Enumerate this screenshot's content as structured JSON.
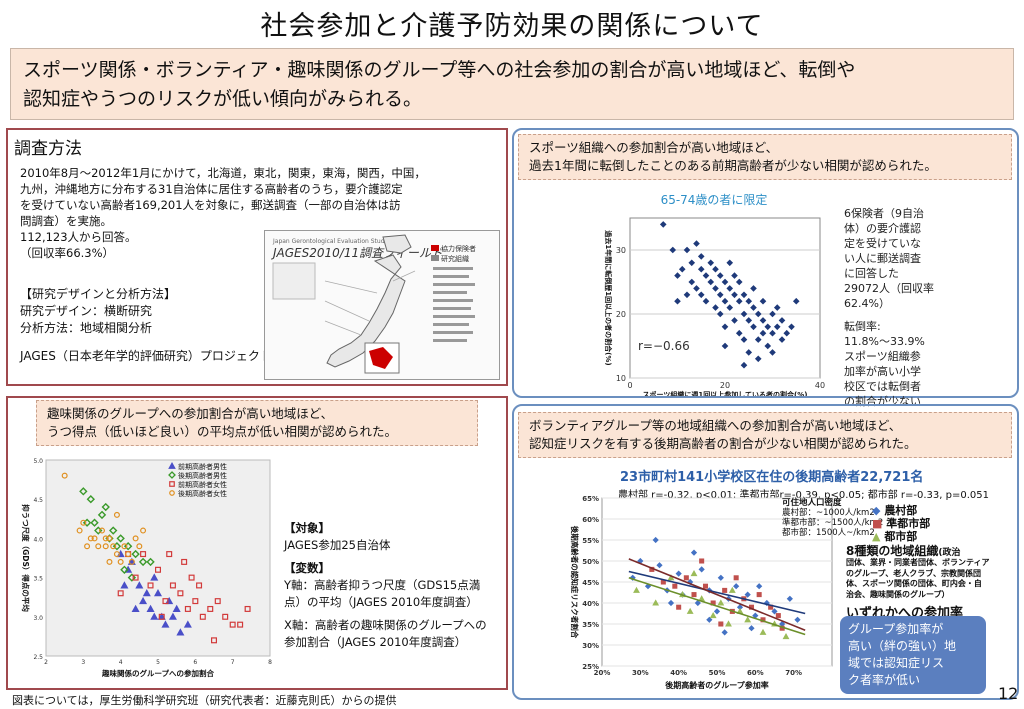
{
  "title": "社会参加と介護予防効果の関係について",
  "summary": [
    "スポーツ関係・ボランティア・趣味関係のグループ等への社会参加の割合が高い地域ほど、転倒や",
    "認知症やうつのリスクが低い傾向がみられる。"
  ],
  "method": {
    "heading": "調査方法",
    "lines": [
      "2010年8月～2012年1月にかけて，北海道，東北，関東，東海，関西，中国，",
      "九州，沖縄地方に分布する31自治体に居住する高齢者のうち，要介護認定",
      "を受けていない高齢者169,201人を対象に，郵送調査（一部の自治体は訪",
      "問調査）を実施。",
      "112,123人から回答。",
      "（回収率66.3%）"
    ],
    "design_lines": [
      "【研究デザインと分析方法】",
      "研究デザイン：横断研究",
      "分析方法：地域相関分析"
    ],
    "jages": "JAGES（日本老年学的評価研究）プロジェクト",
    "map_title": "JAGES2010/11調査フィールド",
    "map_subtitle": "Japan Gerontological Evaluation Study",
    "map_label1": "協力保険者",
    "map_label2": "研究組織"
  },
  "hobby": {
    "callout": [
      "趣味関係のグループへの参加割合が高い地域ほど、",
      "うつ得点（低いほど良い）の平均点が低い相関が認められた。"
    ],
    "legend": [
      "前期高齢者男性",
      "後期高齢者男性",
      "前期高齢者女性",
      "後期高齢者女性"
    ],
    "ylabel": "抑うつ尺度（GDS）得点の平均",
    "xlabel": "趣味関係のグループへの参加割合",
    "target_head": "【対象】",
    "target": "JAGES参加25自治体",
    "var_head": "【変数】",
    "yvar": "Y軸：高齢者抑うつ尺度（GDS15点満点）の平均（JAGES 2010年度調査）",
    "xvar": "X軸：高齢者の趣味関係のグループへの参加割合（JAGES 2010年度調査）"
  },
  "sport": {
    "callout": [
      "スポーツ組織への参加割合が高い地域ほど、",
      "過去1年間に転倒したことのある前期高齢者が少ない相関が認められた。"
    ],
    "chart_title": "65-74歳の者に限定",
    "n_label": "小学校区（n＝65）",
    "r_label": "r=−0.66",
    "ylabel": "過去1年間に転倒歴1回以上の者の割合(%)",
    "xlabel": "スポーツ組織に週1回以上参加している者の割合(%)",
    "side": [
      "6保険者（9自治",
      "体）の要介護認",
      "定を受けていな",
      "い人に郵送調査",
      "に回答した",
      "29072人（回収率",
      "62.4%）",
      "",
      "転倒率:",
      "11.8%～33.9%",
      "スポーツ組織参",
      "加率が高い小学",
      "校区では転倒者",
      "の割合が少ない"
    ]
  },
  "volunteer": {
    "callout": [
      "ボランティアグループ等の地域組織への参加割合が高い地域ほど、",
      "認知症リスクを有する後期高齢者の割合が少ない相関が認められた。"
    ],
    "chart_title": "23市町村141小学校区在住の後期高齢者22,721名",
    "stats": "農村部 r=-0.32, p<0.01; 準都市部r=-0.39, p<0.05; 都市部 r=-0.33, p=0.051",
    "density_head": "可住地人口密度",
    "density": [
      "農村部：~1000人/km2",
      "準都市部：~1500人/km2",
      "都市部：1500人~/km2"
    ],
    "legend": [
      "農村部",
      "準都市部",
      "都市部"
    ],
    "org_head": "8種類の地域組織",
    "org_suffix": "(政治",
    "org_list": [
      "団体、業界・同業者団体、ボランティア",
      "のグループ、老人クラブ、宗教関係団",
      "体、スポーツ関係の団体、町内会・自",
      "治会、趣味関係のグループ）"
    ],
    "org_foot": "いずれかへの参加率",
    "ylabel": "後期高齢者の認知症リスク者割合",
    "xlabel": "後期高齢者のグループ参加率",
    "bluebox": [
      "グループ参加率が",
      "高い（絆の強い）地",
      "域では認知症リス",
      "ク者率が低い"
    ]
  },
  "footer": "図表については，厚生労働科学研究班（研究代表者：近藤克則氏）からの提供",
  "page_number": "12",
  "chart_data": [
    {
      "type": "scatter",
      "title": "65-74歳の者に限定",
      "xlabel": "スポーツ組織に週1回以上参加している者の割合(%)",
      "ylabel": "過去1年間に転倒歴1回以上の者の割合(%)",
      "xlim": [
        0,
        40
      ],
      "ylim": [
        10,
        35
      ],
      "xticks": [
        0,
        20,
        40
      ],
      "yticks": [
        10,
        20,
        30
      ],
      "series": [
        {
          "name": "",
          "points": [
            [
              7,
              34
            ],
            [
              9,
              30
            ],
            [
              10,
              26
            ],
            [
              10,
              22
            ],
            [
              11,
              27
            ],
            [
              12,
              30
            ],
            [
              13,
              28
            ],
            [
              13,
              25
            ],
            [
              14,
              31
            ],
            [
              14,
              24
            ],
            [
              15,
              27
            ],
            [
              15,
              29
            ],
            [
              16,
              26
            ],
            [
              16,
              22
            ],
            [
              17,
              28
            ],
            [
              17,
              25
            ],
            [
              18,
              24
            ],
            [
              18,
              27
            ],
            [
              18,
              21
            ],
            [
              19,
              26
            ],
            [
              19,
              23
            ],
            [
              19,
              20
            ],
            [
              20,
              25
            ],
            [
              20,
              22
            ],
            [
              20,
              18
            ],
            [
              21,
              24
            ],
            [
              21,
              21
            ],
            [
              21,
              28
            ],
            [
              22,
              23
            ],
            [
              22,
              19
            ],
            [
              22,
              26
            ],
            [
              23,
              22
            ],
            [
              23,
              17
            ],
            [
              23,
              25
            ],
            [
              24,
              20
            ],
            [
              24,
              23
            ],
            [
              24,
              16
            ],
            [
              25,
              22
            ],
            [
              25,
              19
            ],
            [
              25,
              14
            ],
            [
              26,
              21
            ],
            [
              26,
              18
            ],
            [
              26,
              24
            ],
            [
              27,
              20
            ],
            [
              27,
              16
            ],
            [
              27,
              13
            ],
            [
              28,
              19
            ],
            [
              28,
              22
            ],
            [
              28,
              17
            ],
            [
              29,
              18
            ],
            [
              29,
              15
            ],
            [
              30,
              20
            ],
            [
              30,
              17
            ],
            [
              30,
              14
            ],
            [
              31,
              18
            ],
            [
              31,
              21
            ],
            [
              32,
              16
            ],
            [
              32,
              19
            ],
            [
              33,
              17
            ],
            [
              34,
              18
            ],
            [
              35,
              22
            ],
            [
              24,
              12
            ],
            [
              20,
              15
            ],
            [
              15,
              23
            ],
            [
              12,
              23
            ]
          ]
        }
      ],
      "annotation": "r=−0.66"
    },
    {
      "type": "scatter",
      "title": "",
      "xlabel": "趣味関係のグループへの参加割合",
      "ylabel": "抑うつ尺度（GDS）得点の平均",
      "xlim": [
        2,
        8
      ],
      "ylim": [
        2.5,
        5.0
      ],
      "xticks": [
        2,
        3,
        4,
        5,
        6,
        7,
        8
      ],
      "yticks": [
        2.5,
        3.0,
        3.5,
        4.0,
        4.5,
        5.0
      ],
      "series": [
        {
          "name": "前期高齢者男性",
          "points": [
            [
              4.2,
              3.6
            ],
            [
              4.5,
              3.4
            ],
            [
              4.8,
              3.1
            ],
            [
              5.0,
              3.3
            ],
            [
              5.2,
              2.9
            ],
            [
              5.4,
              3.0
            ],
            [
              4.6,
              3.2
            ],
            [
              5.6,
              2.8
            ],
            [
              4.9,
              3.5
            ],
            [
              4.3,
              3.7
            ],
            [
              5.1,
              3.0
            ],
            [
              4.7,
              3.3
            ],
            [
              5.3,
              3.2
            ],
            [
              4.4,
              3.1
            ],
            [
              5.5,
              3.1
            ],
            [
              4.0,
              3.8
            ],
            [
              4.9,
              3.0
            ],
            [
              5.8,
              2.9
            ],
            [
              4.1,
              3.4
            ]
          ]
        },
        {
          "name": "後期高齢者男性",
          "points": [
            [
              3.0,
              4.6
            ],
            [
              3.2,
              4.5
            ],
            [
              3.5,
              4.3
            ],
            [
              3.3,
              4.2
            ],
            [
              3.8,
              4.1
            ],
            [
              4.0,
              4.0
            ],
            [
              4.2,
              3.9
            ],
            [
              3.6,
              4.4
            ],
            [
              4.4,
              3.8
            ],
            [
              3.9,
              3.9
            ],
            [
              4.1,
              3.6
            ],
            [
              3.4,
              4.1
            ],
            [
              4.6,
              3.7
            ],
            [
              3.7,
              4.0
            ],
            [
              4.3,
              3.5
            ],
            [
              4.8,
              3.7
            ],
            [
              3.1,
              4.2
            ]
          ]
        },
        {
          "name": "前期高齢者女性",
          "points": [
            [
              4.0,
              3.3
            ],
            [
              4.4,
              3.5
            ],
            [
              4.8,
              3.4
            ],
            [
              5.0,
              3.6
            ],
            [
              5.2,
              3.2
            ],
            [
              5.4,
              3.4
            ],
            [
              5.6,
              3.3
            ],
            [
              5.8,
              3.1
            ],
            [
              6.0,
              3.2
            ],
            [
              6.2,
              3.0
            ],
            [
              6.4,
              3.1
            ],
            [
              6.6,
              3.2
            ],
            [
              6.8,
              3.0
            ],
            [
              7.0,
              2.9
            ],
            [
              7.2,
              2.9
            ],
            [
              5.3,
              3.8
            ],
            [
              5.7,
              3.7
            ],
            [
              4.6,
              3.8
            ],
            [
              6.1,
              3.4
            ],
            [
              6.5,
              2.7
            ],
            [
              7.4,
              3.1
            ],
            [
              5.1,
              3.0
            ],
            [
              4.2,
              3.8
            ],
            [
              5.9,
              3.5
            ]
          ]
        },
        {
          "name": "後期高齢者女性",
          "points": [
            [
              2.5,
              4.8
            ],
            [
              3.0,
              4.2
            ],
            [
              3.1,
              3.9
            ],
            [
              3.3,
              4.0
            ],
            [
              3.4,
              3.9
            ],
            [
              3.5,
              4.1
            ],
            [
              3.6,
              3.9
            ],
            [
              3.7,
              3.7
            ],
            [
              3.8,
              3.9
            ],
            [
              3.9,
              3.8
            ],
            [
              4.0,
              3.7
            ],
            [
              4.1,
              3.9
            ],
            [
              4.2,
              3.8
            ],
            [
              4.4,
              4.0
            ],
            [
              4.5,
              3.9
            ],
            [
              4.6,
              4.1
            ],
            [
              3.9,
              4.3
            ],
            [
              3.2,
              4.0
            ],
            [
              3.6,
              4.0
            ],
            [
              4.3,
              3.7
            ],
            [
              2.9,
              4.1
            ],
            [
              3.7,
              4.0
            ]
          ]
        }
      ]
    },
    {
      "type": "scatter",
      "title": "23市町村141小学校区在住の後期高齢者22,721名",
      "xlabel": "後期高齢者のグループ参加率",
      "ylabel": "後期高齢者の認知症リスク者割合",
      "xlim": [
        20,
        80
      ],
      "ylim": [
        25,
        65
      ],
      "xticks": [
        "20%",
        "30%",
        "40%",
        "50%",
        "60%",
        "70%"
      ],
      "yticks": [
        "25%",
        "30%",
        "35%",
        "40%",
        "45%",
        "50%",
        "55%",
        "60%",
        "65%"
      ],
      "series": [
        {
          "name": "農村部",
          "points": [
            [
              28,
              46
            ],
            [
              30,
              50
            ],
            [
              32,
              44
            ],
            [
              35,
              49
            ],
            [
              37,
              43
            ],
            [
              40,
              47
            ],
            [
              41,
              42
            ],
            [
              43,
              45
            ],
            [
              45,
              40
            ],
            [
              46,
              48
            ],
            [
              48,
              43
            ],
            [
              50,
              38
            ],
            [
              51,
              46
            ],
            [
              53,
              41
            ],
            [
              55,
              44
            ],
            [
              56,
              39
            ],
            [
              58,
              42
            ],
            [
              60,
              37
            ],
            [
              61,
              44
            ],
            [
              63,
              40
            ],
            [
              65,
              38
            ],
            [
              67,
              35
            ],
            [
              69,
              41
            ],
            [
              71,
              36
            ],
            [
              34,
              55
            ],
            [
              44,
              52
            ],
            [
              52,
              33
            ],
            [
              59,
              34
            ],
            [
              38,
              40
            ],
            [
              48,
              36
            ]
          ]
        },
        {
          "name": "準都市部",
          "points": [
            [
              33,
              48
            ],
            [
              36,
              45
            ],
            [
              39,
              44
            ],
            [
              42,
              46
            ],
            [
              44,
              42
            ],
            [
              47,
              44
            ],
            [
              49,
              40
            ],
            [
              52,
              43
            ],
            [
              54,
              38
            ],
            [
              57,
              41
            ],
            [
              59,
              39
            ],
            [
              62,
              36
            ],
            [
              64,
              39
            ],
            [
              67,
              34
            ],
            [
              46,
              50
            ],
            [
              55,
              46
            ],
            [
              61,
              42
            ],
            [
              40,
              39
            ],
            [
              51,
              35
            ],
            [
              66,
              37
            ]
          ]
        },
        {
          "name": "都市部",
          "points": [
            [
              29,
              43
            ],
            [
              34,
              40
            ],
            [
              38,
              46
            ],
            [
              41,
              42
            ],
            [
              43,
              38
            ],
            [
              46,
              41
            ],
            [
              49,
              37
            ],
            [
              51,
              40
            ],
            [
              53,
              35
            ],
            [
              56,
              38
            ],
            [
              58,
              36
            ],
            [
              62,
              33
            ],
            [
              65,
              35
            ],
            [
              68,
              32
            ],
            [
              44,
              47
            ],
            [
              54,
              43
            ]
          ]
        }
      ],
      "fit_lines": [
        {
          "name": "農村部",
          "from": [
            27,
            47.5
          ],
          "to": [
            73,
            37.5
          ]
        },
        {
          "name": "準都市部",
          "from": [
            27,
            50.5
          ],
          "to": [
            73,
            33.5
          ]
        },
        {
          "name": "都市部",
          "from": [
            27,
            46
          ],
          "to": [
            73,
            32.5
          ]
        }
      ]
    }
  ]
}
